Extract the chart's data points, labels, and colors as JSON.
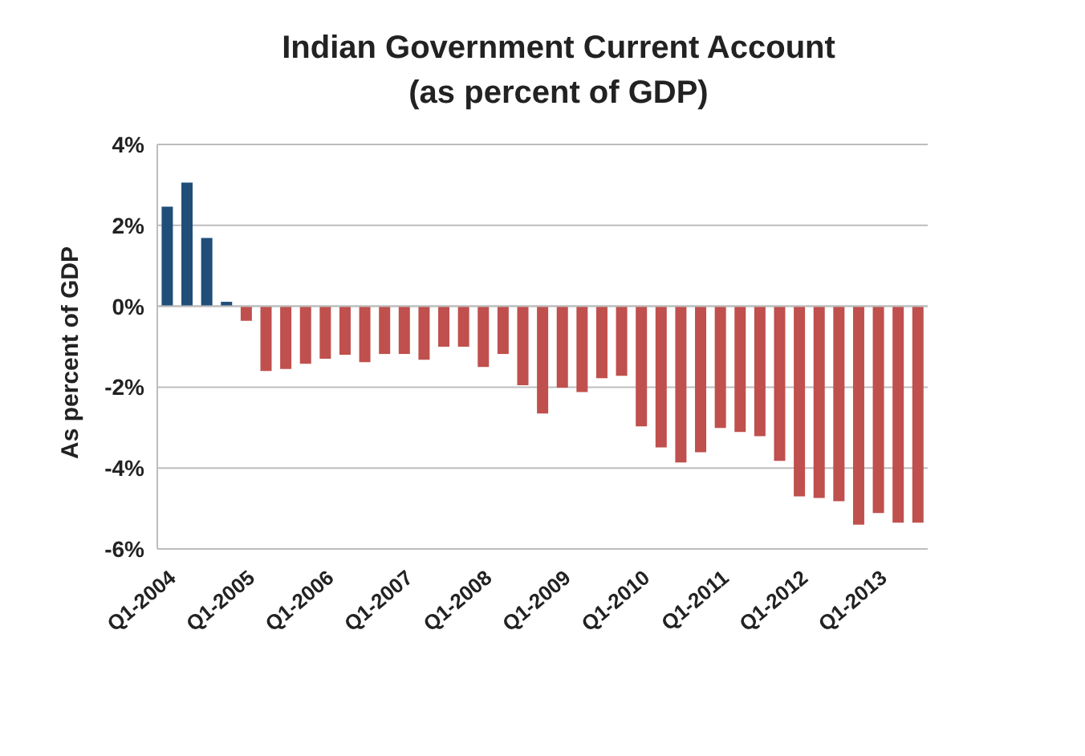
{
  "chart_data": {
    "type": "bar",
    "title": "Indian Government Current Account",
    "subtitle": "(as percent of GDP)",
    "ylabel": "As percent of GDP",
    "categories": [
      "Q1-2004",
      null,
      null,
      null,
      "Q1-2005",
      null,
      null,
      null,
      "Q1-2006",
      null,
      null,
      null,
      "Q1-2007",
      null,
      null,
      null,
      "Q1-2008",
      null,
      null,
      null,
      "Q1-2009",
      null,
      null,
      null,
      "Q1-2010",
      null,
      null,
      null,
      "Q1-2011",
      null,
      null,
      null,
      "Q1-2012",
      null,
      null,
      null,
      "Q1-2013",
      null,
      null
    ],
    "values": [
      2.46,
      3.06,
      1.69,
      0.11,
      -0.36,
      -1.6,
      -1.55,
      -1.42,
      -1.3,
      -1.2,
      -1.38,
      -1.18,
      -1.18,
      -1.32,
      -1.0,
      -1.0,
      -1.5,
      -1.18,
      -1.95,
      -2.65,
      -2.01,
      -2.12,
      -1.78,
      -1.72,
      -2.97,
      -3.49,
      -3.86,
      -3.61,
      -3.01,
      -3.11,
      -3.21,
      -3.82,
      -4.7,
      -4.74,
      -4.82,
      -5.4,
      -5.11,
      -5.35,
      -5.35
    ],
    "colors": [
      "#1f4e79",
      "#1f4e79",
      "#1f4e79",
      "#1f4e79",
      "#c0504d",
      "#c0504d",
      "#c0504d",
      "#c0504d",
      "#c0504d",
      "#c0504d",
      "#c0504d",
      "#c0504d",
      "#c0504d",
      "#c0504d",
      "#c0504d",
      "#c0504d",
      "#c0504d",
      "#c0504d",
      "#c0504d",
      "#c0504d",
      "#c0504d",
      "#c0504d",
      "#c0504d",
      "#c0504d",
      "#c0504d",
      "#c0504d",
      "#c0504d",
      "#c0504d",
      "#c0504d",
      "#c0504d",
      "#c0504d",
      "#c0504d",
      "#c0504d",
      "#c0504d",
      "#c0504d",
      "#c0504d",
      "#c0504d",
      "#c0504d",
      "#c0504d"
    ],
    "ylim": [
      -6,
      4
    ],
    "yticks": [
      {
        "value": -6,
        "label": "-6%"
      },
      {
        "value": -4,
        "label": "-4%"
      },
      {
        "value": -2,
        "label": "-2%"
      },
      {
        "value": 0,
        "label": "0%"
      },
      {
        "value": 2,
        "label": "2%"
      },
      {
        "value": 4,
        "label": "4%"
      }
    ],
    "grid": "y",
    "legend": false
  }
}
